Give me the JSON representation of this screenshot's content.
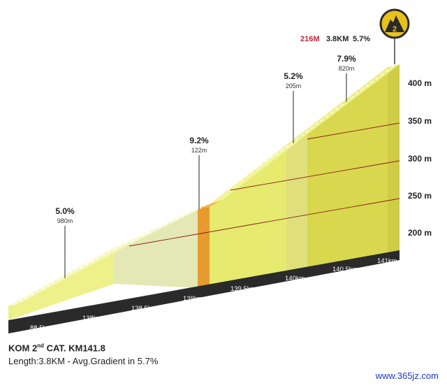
{
  "chart_data": {
    "type": "area",
    "category": "KOM 2nd CAT.",
    "km_mark": "KM141.8",
    "summary": {
      "elevation": "216M",
      "length": "3.8KM",
      "gradient": "5.7%"
    },
    "climb_badge": "2",
    "altitude_ticks": [
      {
        "value": 200,
        "label": "200 m"
      },
      {
        "value": 250,
        "label": "250 m"
      },
      {
        "value": 300,
        "label": "300 m"
      },
      {
        "value": 350,
        "label": "350 m"
      },
      {
        "value": 400,
        "label": "400 m"
      }
    ],
    "km_ticks": [
      {
        "km": 138,
        "label": "88.5km"
      },
      {
        "km": 138.5,
        "label": "138km"
      },
      {
        "km": 139,
        "label": "138.5km"
      },
      {
        "km": 139.5,
        "label": "139km"
      },
      {
        "km": 140,
        "label": "139.5km"
      },
      {
        "km": 140.5,
        "label": "140km"
      },
      {
        "km": 141,
        "label": "140.5km"
      },
      {
        "km": 141.5,
        "label": "141km"
      }
    ],
    "segments": [
      {
        "gradient": "5.0%",
        "distance": "980m"
      },
      {
        "gradient": "9.2%",
        "distance": "122m"
      },
      {
        "gradient": "5.2%",
        "distance": "205m"
      },
      {
        "gradient": "7.9%",
        "distance": "820m"
      }
    ]
  },
  "footer": {
    "title_prefix": "KOM 2",
    "title_sup": "nd",
    "title_suffix": " CAT.  KM141.8",
    "line2": "Length:3.8KM - Avg.Gradient in 5.7%"
  },
  "watermark": "www.365jz.com",
  "colors": {
    "light": "#f0f39a",
    "mid": "#e6ea6e",
    "dark": "#d8d74e",
    "orange": "#e79a2e",
    "line": "#8b1a1a",
    "summary_red": "#c0293b"
  }
}
